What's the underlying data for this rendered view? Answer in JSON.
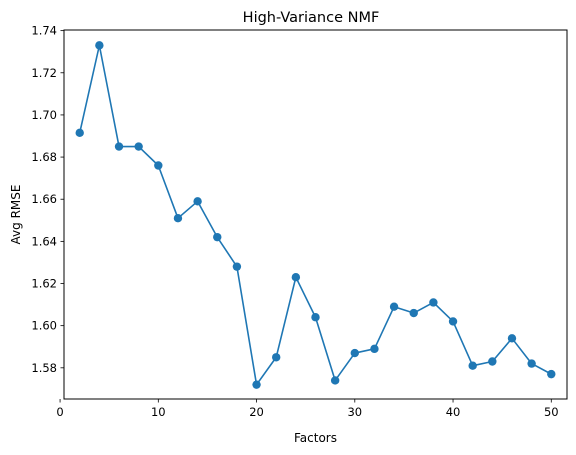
{
  "chart_data": {
    "type": "line",
    "title": "High-Variance NMF",
    "xlabel": "Factors",
    "ylabel": "Avg RMSE",
    "xlim": [
      0.4,
      51.6
    ],
    "ylim": [
      1.5652,
      1.7403
    ],
    "xticks": [
      0,
      10,
      20,
      30,
      40,
      50
    ],
    "xtick_labels": [
      "0",
      "10",
      "20",
      "30",
      "40",
      "50"
    ],
    "yticks": [
      1.58,
      1.6,
      1.62,
      1.64,
      1.66,
      1.68,
      1.7,
      1.72,
      1.74
    ],
    "ytick_labels": [
      "1.58",
      "1.60",
      "1.62",
      "1.64",
      "1.66",
      "1.68",
      "1.70",
      "1.72",
      "1.74"
    ],
    "grid": false,
    "legend": false,
    "color": "#1f77b4",
    "marker": "o",
    "series": [
      {
        "x": [
          2,
          4,
          6,
          8,
          10,
          12,
          14,
          16,
          18,
          20,
          22,
          24,
          26,
          28,
          30,
          32,
          34,
          36,
          38,
          40,
          42,
          44,
          46,
          48,
          50
        ],
        "y": [
          1.6915,
          1.733,
          1.685,
          1.685,
          1.676,
          1.651,
          1.659,
          1.642,
          1.628,
          1.572,
          1.585,
          1.623,
          1.604,
          1.574,
          1.587,
          1.589,
          1.609,
          1.606,
          1.611,
          1.602,
          1.581,
          1.583,
          1.594,
          1.582,
          1.577
        ]
      }
    ]
  }
}
